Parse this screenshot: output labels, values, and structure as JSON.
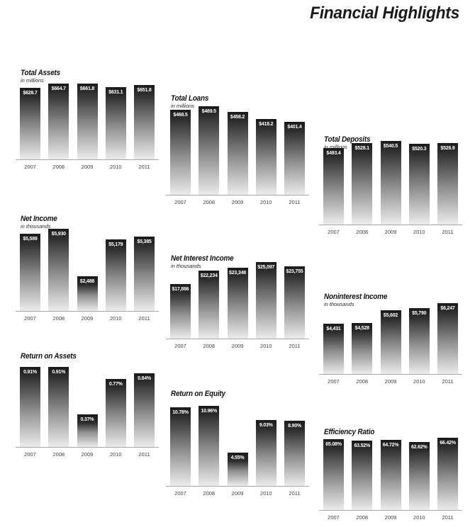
{
  "page": {
    "title": "Financial Highlights"
  },
  "colors": {
    "bar_gradient_top": "#1a1a1a",
    "bar_gradient_bottom": "#ececec",
    "value_label": "#ffffff",
    "year_label": "#3f3f3f",
    "baseline": "#a6a6a6",
    "heading": "#1b1b1b"
  },
  "chart_data": [
    {
      "type": "bar",
      "title": "Total Assets",
      "subtitle": "in millions",
      "categories": [
        "2007",
        "2008",
        "2009",
        "2010",
        "2011"
      ],
      "values": [
        628.7,
        664.7,
        661.8,
        631.1,
        651.8
      ],
      "value_labels": [
        "$628.7",
        "$664.7",
        "$661.8",
        "$631.1",
        "$651.8"
      ],
      "ylim": [
        0,
        664.7
      ],
      "grid": false,
      "legend": false
    },
    {
      "type": "bar",
      "title": "Net Income",
      "subtitle": "in thousands",
      "categories": [
        "2007",
        "2008",
        "2009",
        "2010",
        "2011"
      ],
      "values": [
        5589,
        5930,
        2488,
        5179,
        5385
      ],
      "value_labels": [
        "$5,589",
        "$5,930",
        "$2,488",
        "$5,179",
        "$5,385"
      ],
      "ylim": [
        0,
        5930
      ],
      "grid": false,
      "legend": false
    },
    {
      "type": "bar",
      "title": "Return on Assets",
      "subtitle": "",
      "categories": [
        "2007",
        "2008",
        "2009",
        "2010",
        "2011"
      ],
      "values": [
        0.91,
        0.91,
        0.37,
        0.77,
        0.84
      ],
      "value_labels": [
        "0.91%",
        "0.91%",
        "0.37%",
        "0.77%",
        "0.84%"
      ],
      "ylim": [
        0,
        0.91
      ],
      "grid": false,
      "legend": false
    },
    {
      "type": "bar",
      "title": "Total Loans",
      "subtitle": "in millions",
      "categories": [
        "2007",
        "2008",
        "2009",
        "2010",
        "2011"
      ],
      "values": [
        468.5,
        489.5,
        458.2,
        418.2,
        401.4
      ],
      "value_labels": [
        "$468.5",
        "$489.5",
        "$458.2",
        "$418.2",
        "$401.4"
      ],
      "ylim": [
        0,
        489.5
      ],
      "grid": false,
      "legend": false
    },
    {
      "type": "bar",
      "title": "Net Interest Income",
      "subtitle": "in thousands",
      "categories": [
        "2007",
        "2008",
        "2009",
        "2010",
        "2011"
      ],
      "values": [
        17886,
        22234,
        23348,
        25097,
        23755
      ],
      "value_labels": [
        "$17,886",
        "$22,234",
        "$23,348",
        "$25,097",
        "$23,755"
      ],
      "ylim": [
        0,
        25097
      ],
      "grid": false,
      "legend": false
    },
    {
      "type": "bar",
      "title": "Return on Equity",
      "subtitle": "",
      "categories": [
        "2007",
        "2008",
        "2009",
        "2010",
        "2011"
      ],
      "values": [
        10.78,
        10.96,
        4.55,
        9.03,
        8.9
      ],
      "value_labels": [
        "10.78%",
        "10.96%",
        "4.55%",
        "9.03%",
        "8.90%"
      ],
      "ylim": [
        0,
        10.96
      ],
      "grid": false,
      "legend": false
    },
    {
      "type": "bar",
      "title": "Total Deposits",
      "subtitle": "in millions",
      "categories": [
        "2007",
        "2008",
        "2009",
        "2010",
        "2011"
      ],
      "values": [
        493.4,
        528.1,
        540.5,
        520.3,
        526.9
      ],
      "value_labels": [
        "$493.4",
        "$528.1",
        "$540.5",
        "$520.3",
        "$526.9"
      ],
      "ylim": [
        0,
        540.5
      ],
      "grid": false,
      "legend": false
    },
    {
      "type": "bar",
      "title": "Noninterest Income",
      "subtitle": "in thousands",
      "categories": [
        "2007",
        "2008",
        "2009",
        "2010",
        "2011"
      ],
      "values": [
        4431,
        4528,
        5602,
        5790,
        6247
      ],
      "value_labels": [
        "$4,431",
        "$4,528",
        "$5,602",
        "$5,790",
        "$6,247"
      ],
      "ylim": [
        0,
        6247
      ],
      "grid": false,
      "legend": false
    },
    {
      "type": "bar",
      "title": "Efficiency Ratio",
      "subtitle": "",
      "categories": [
        "2007",
        "2008",
        "2009",
        "2010",
        "2011"
      ],
      "values": [
        65.08,
        63.52,
        64.72,
        62.62,
        66.42
      ],
      "value_labels": [
        "65.08%",
        "63.52%",
        "64.72%",
        "62.62%",
        "66.42%"
      ],
      "ylim": [
        0,
        66.42
      ],
      "grid": false,
      "legend": false
    }
  ]
}
